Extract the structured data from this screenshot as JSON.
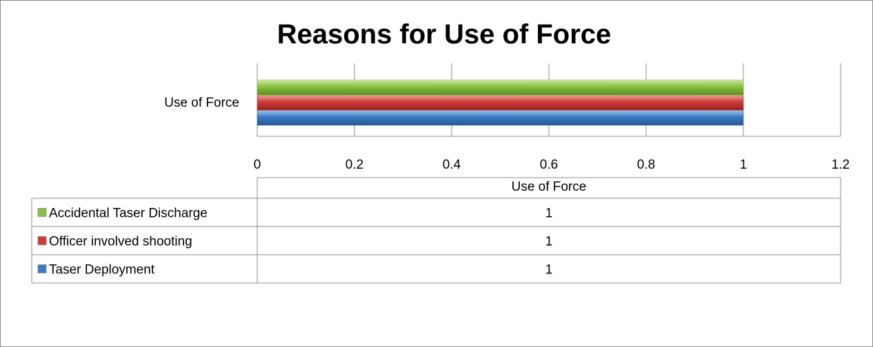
{
  "chart_data": {
    "type": "bar",
    "orientation": "horizontal",
    "title": "Reasons for Use of Force",
    "categories": [
      "Use of Force"
    ],
    "series": [
      {
        "name": "Taser Deployment",
        "values": [
          1
        ],
        "color": "#3A7CC6"
      },
      {
        "name": "Officer involved shooting",
        "values": [
          1
        ],
        "color": "#D23A36"
      },
      {
        "name": "Accidental Taser Discharge",
        "values": [
          1
        ],
        "color": "#86C23E"
      }
    ],
    "xlim": [
      0,
      1.2
    ],
    "ticks": [
      "0",
      "0.2",
      "0.4",
      "0.6",
      "0.8",
      "1",
      "1.2"
    ],
    "data_table": {
      "header": "Use of Force",
      "rows": [
        {
          "label": "Accidental Taser Discharge",
          "value": "1"
        },
        {
          "label": "Officer involved shooting",
          "value": "1"
        },
        {
          "label": "Taser Deployment",
          "value": "1"
        }
      ]
    }
  }
}
